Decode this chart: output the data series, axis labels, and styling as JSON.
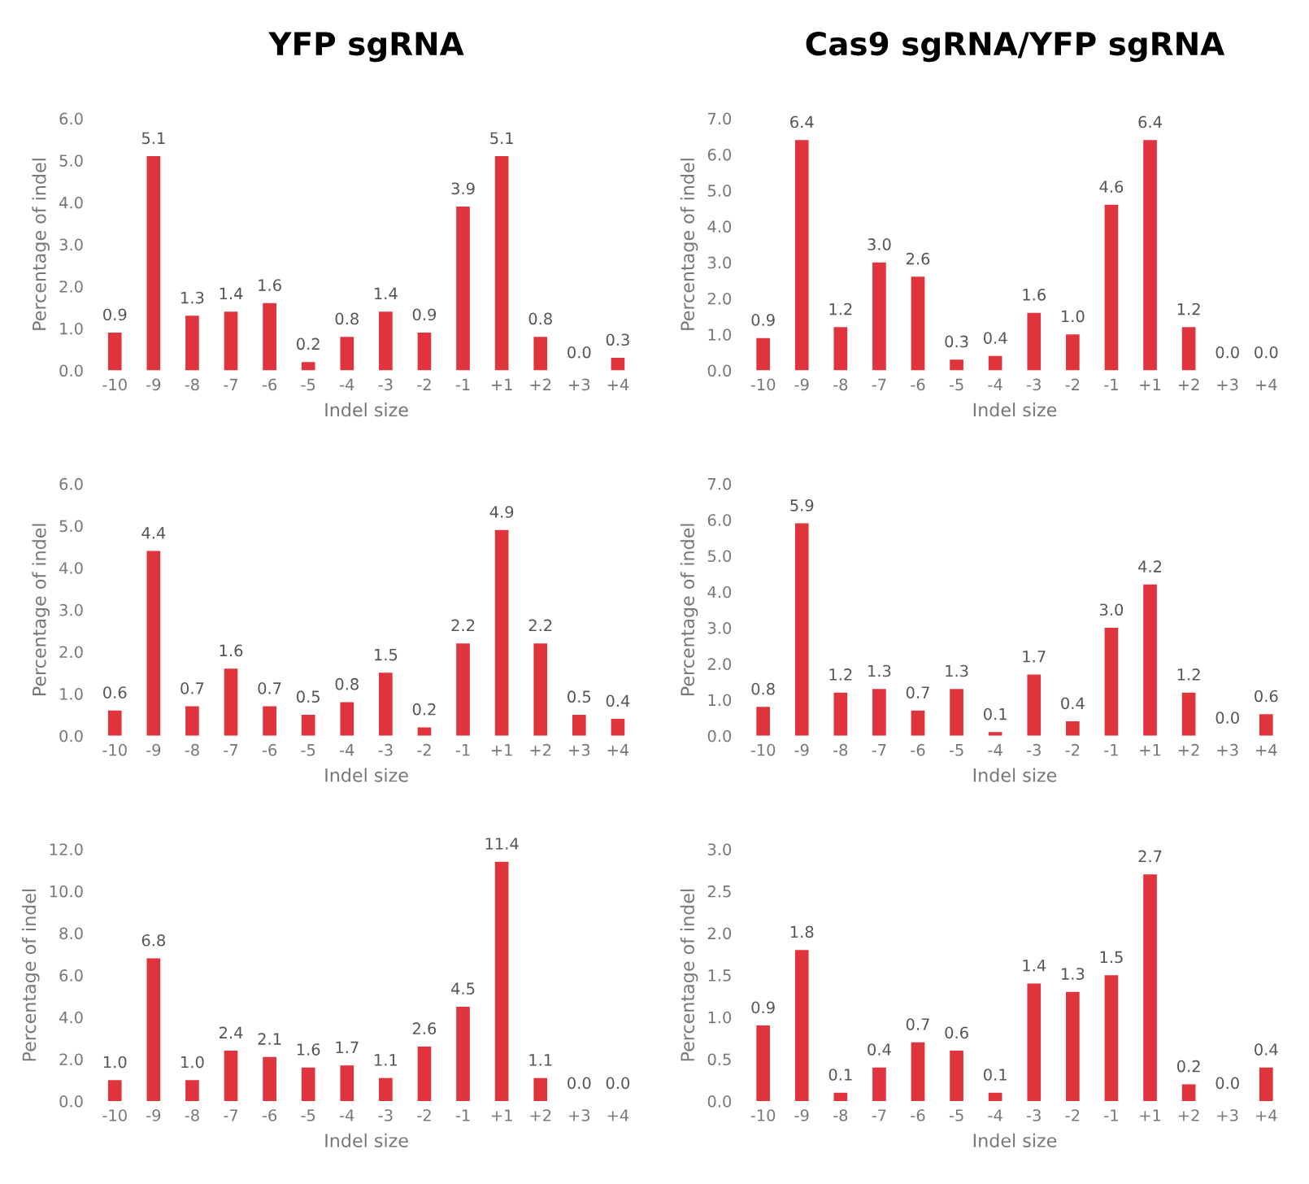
{
  "chart_data": [
    {
      "type": "bar",
      "title": "YFP sgRNA",
      "xlabel": "Indel size",
      "ylabel": "Percentage of indel",
      "categories": [
        "-10",
        "-9",
        "-8",
        "-7",
        "-6",
        "-5",
        "-4",
        "-3",
        "-2",
        "-1",
        "+1",
        "+2",
        "+3",
        "+4"
      ],
      "values": [
        0.9,
        5.1,
        1.3,
        1.4,
        1.6,
        0.2,
        0.8,
        1.4,
        0.9,
        3.9,
        5.1,
        0.8,
        0,
        0.3
      ],
      "value_labels": [
        "0.9",
        "5.1",
        "1.3",
        "1.4",
        "1.6",
        "0.2",
        "0.8",
        "1.4",
        "0.9",
        "3.9",
        "5.1",
        "0.8",
        "0.0",
        "0.3"
      ],
      "color": "#e0343c",
      "ylim": [
        0,
        6
      ],
      "yticks": [
        {
          "value": 0,
          "label": "0.0"
        },
        {
          "value": 1,
          "label": "1.0"
        },
        {
          "value": 2,
          "label": "2.0"
        },
        {
          "value": 3,
          "label": "3.0"
        },
        {
          "value": 4,
          "label": "4.0"
        },
        {
          "value": 5,
          "label": "5.0"
        },
        {
          "value": 6,
          "label": "6.0"
        }
      ]
    },
    {
      "type": "bar",
      "title": "Cas9 sgRNA/YFP sgRNA",
      "xlabel": "Indel size",
      "ylabel": "Percentage of indel",
      "categories": [
        "-10",
        "-9",
        "-8",
        "-7",
        "-6",
        "-5",
        "-4",
        "-3",
        "-2",
        "-1",
        "+1",
        "+2",
        "+3",
        "+4"
      ],
      "values": [
        0.9,
        6.4,
        1.2,
        3,
        2.6,
        0.3,
        0.4,
        1.6,
        1,
        4.6,
        6.4,
        1.2,
        0,
        0
      ],
      "value_labels": [
        "0.9",
        "6.4",
        "1.2",
        "3.0",
        "2.6",
        "0.3",
        "0.4",
        "1.6",
        "1.0",
        "4.6",
        "6.4",
        "1.2",
        "0.0",
        "0.0"
      ],
      "color": "#e0343c",
      "ylim": [
        0,
        7
      ],
      "yticks": [
        {
          "value": 0,
          "label": "0.0"
        },
        {
          "value": 1,
          "label": "1.0"
        },
        {
          "value": 2,
          "label": "2.0"
        },
        {
          "value": 3,
          "label": "3.0"
        },
        {
          "value": 4,
          "label": "4.0"
        },
        {
          "value": 5,
          "label": "5.0"
        },
        {
          "value": 6,
          "label": "6.0"
        },
        {
          "value": 7,
          "label": "7.0"
        }
      ]
    },
    {
      "type": "bar",
      "xlabel": "Indel size",
      "ylabel": "Percentage of indel",
      "categories": [
        "-10",
        "-9",
        "-8",
        "-7",
        "-6",
        "-5",
        "-4",
        "-3",
        "-2",
        "-1",
        "+1",
        "+2",
        "+3",
        "+4"
      ],
      "values": [
        0.6,
        4.4,
        0.7,
        1.6,
        0.7,
        0.5,
        0.8,
        1.5,
        0.2,
        2.2,
        4.9,
        2.2,
        0.5,
        0.4
      ],
      "value_labels": [
        "0.6",
        "4.4",
        "0.7",
        "1.6",
        "0.7",
        "0.5",
        "0.8",
        "1.5",
        "0.2",
        "2.2",
        "4.9",
        "2.2",
        "0.5",
        "0.4"
      ],
      "color": "#e0343c",
      "ylim": [
        0,
        6
      ],
      "yticks": [
        {
          "value": 0,
          "label": "0.0"
        },
        {
          "value": 1,
          "label": "1.0"
        },
        {
          "value": 2,
          "label": "2.0"
        },
        {
          "value": 3,
          "label": "3.0"
        },
        {
          "value": 4,
          "label": "4.0"
        },
        {
          "value": 5,
          "label": "5.0"
        },
        {
          "value": 6,
          "label": "6.0"
        }
      ]
    },
    {
      "type": "bar",
      "xlabel": "Indel size",
      "ylabel": "Percentage of indel",
      "categories": [
        "-10",
        "-9",
        "-8",
        "-7",
        "-6",
        "-5",
        "-4",
        "-3",
        "-2",
        "-1",
        "+1",
        "+2",
        "+3",
        "+4"
      ],
      "values": [
        0.8,
        5.9,
        1.2,
        1.3,
        0.7,
        1.3,
        0.1,
        1.7,
        0.4,
        3,
        4.2,
        1.2,
        0,
        0.6
      ],
      "value_labels": [
        "0.8",
        "5.9",
        "1.2",
        "1.3",
        "0.7",
        "1.3",
        "0.1",
        "1.7",
        "0.4",
        "3.0",
        "4.2",
        "1.2",
        "0.0",
        "0.6"
      ],
      "color": "#e0343c",
      "ylim": [
        0,
        7
      ],
      "yticks": [
        {
          "value": 0,
          "label": "0.0"
        },
        {
          "value": 1,
          "label": "1.0"
        },
        {
          "value": 2,
          "label": "2.0"
        },
        {
          "value": 3,
          "label": "3.0"
        },
        {
          "value": 4,
          "label": "4.0"
        },
        {
          "value": 5,
          "label": "5.0"
        },
        {
          "value": 6,
          "label": "6.0"
        },
        {
          "value": 7,
          "label": "7.0"
        }
      ]
    },
    {
      "type": "bar",
      "xlabel": "Indel size",
      "ylabel": "Percentage of indel",
      "categories": [
        "-10",
        "-9",
        "-8",
        "-7",
        "-6",
        "-5",
        "-4",
        "-3",
        "-2",
        "-1",
        "+1",
        "+2",
        "+3",
        "+4"
      ],
      "values": [
        1,
        6.8,
        1,
        2.4,
        2.1,
        1.6,
        1.7,
        1.1,
        2.6,
        4.5,
        11.4,
        1.1,
        0,
        0
      ],
      "value_labels": [
        "1.0",
        "6.8",
        "1.0",
        "2.4",
        "2.1",
        "1.6",
        "1.7",
        "1.1",
        "2.6",
        "4.5",
        "11.4",
        "1.1",
        "0.0",
        "0.0"
      ],
      "color": "#e0343c",
      "ylim": [
        0,
        12
      ],
      "yticks": [
        {
          "value": 0,
          "label": "0.0"
        },
        {
          "value": 2,
          "label": "2.0"
        },
        {
          "value": 4,
          "label": "4.0"
        },
        {
          "value": 6,
          "label": "6.0"
        },
        {
          "value": 8,
          "label": "8.0"
        },
        {
          "value": 10,
          "label": "10.0"
        },
        {
          "value": 12,
          "label": "12.0"
        }
      ]
    },
    {
      "type": "bar",
      "xlabel": "Indel size",
      "ylabel": "Percentage of indel",
      "categories": [
        "-10",
        "-9",
        "-8",
        "-7",
        "-6",
        "-5",
        "-4",
        "-3",
        "-2",
        "-1",
        "+1",
        "+2",
        "+3",
        "+4"
      ],
      "values": [
        0.9,
        1.8,
        0.1,
        0.4,
        0.7,
        0.6,
        0.1,
        1.4,
        1.3,
        1.5,
        2.7,
        0.2,
        0,
        0.4
      ],
      "value_labels": [
        "0.9",
        "1.8",
        "0.1",
        "0.4",
        "0.7",
        "0.6",
        "0.1",
        "1.4",
        "1.3",
        "1.5",
        "2.7",
        "0.2",
        "0.0",
        "0.4"
      ],
      "color": "#e0343c",
      "ylim": [
        0,
        3
      ],
      "yticks": [
        {
          "value": 0,
          "label": "0.0"
        },
        {
          "value": 0.5,
          "label": "0.5"
        },
        {
          "value": 1,
          "label": "1.0"
        },
        {
          "value": 1.5,
          "label": "1.5"
        },
        {
          "value": 2,
          "label": "2.0"
        },
        {
          "value": 2.5,
          "label": "2.5"
        },
        {
          "value": 3,
          "label": "3.0"
        }
      ]
    }
  ]
}
